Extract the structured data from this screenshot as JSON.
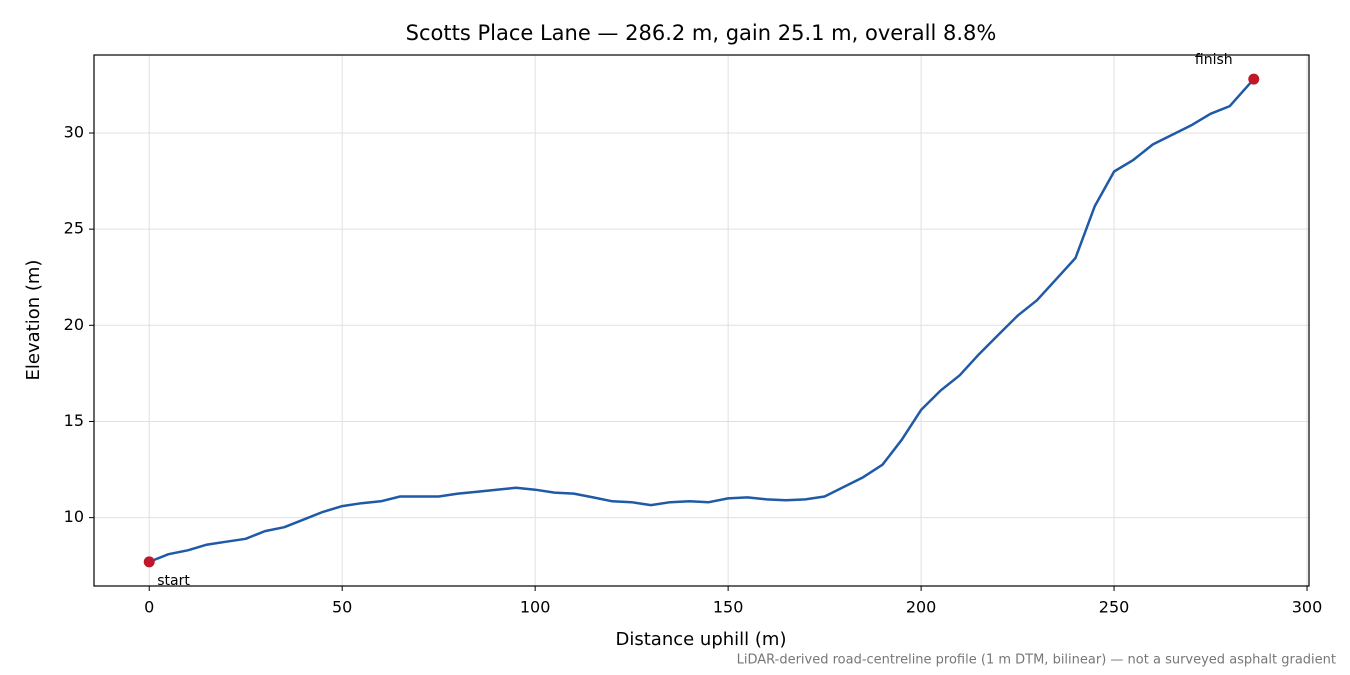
{
  "chart_data": {
    "type": "line",
    "title": "Scotts Place Lane — 286.2 m, gain 25.1 m, overall 8.8%",
    "xlabel": "Distance uphill (m)",
    "ylabel": "Elevation (m)",
    "note": "LiDAR-derived road-centreline profile (1 m DTM, bilinear) — not a surveyed asphalt gradient",
    "annotations": [
      "start",
      "finish"
    ],
    "x": [
      0,
      5,
      10,
      15,
      20,
      25,
      30,
      35,
      40,
      45,
      50,
      55,
      60,
      65,
      70,
      75,
      80,
      85,
      90,
      95,
      100,
      105,
      110,
      115,
      120,
      125,
      130,
      135,
      140,
      145,
      150,
      155,
      160,
      165,
      170,
      175,
      180,
      185,
      190,
      195,
      200,
      205,
      210,
      215,
      220,
      225,
      230,
      235,
      240,
      245,
      250,
      255,
      260,
      265,
      270,
      275,
      280,
      286.2
    ],
    "values": [
      7.7,
      8.1,
      8.3,
      8.6,
      8.75,
      8.9,
      9.3,
      9.5,
      9.9,
      10.3,
      10.6,
      10.75,
      10.85,
      11.1,
      11.1,
      11.1,
      11.25,
      11.35,
      11.45,
      11.55,
      11.45,
      11.3,
      11.25,
      11.05,
      10.85,
      10.8,
      10.65,
      10.8,
      10.85,
      10.8,
      11.0,
      11.05,
      10.95,
      10.9,
      10.95,
      11.1,
      11.6,
      12.1,
      12.75,
      14.05,
      15.6,
      16.6,
      17.4,
      18.5,
      19.5,
      20.5,
      21.3,
      22.4,
      23.5,
      26.2,
      28.0,
      28.6,
      29.4,
      29.9,
      30.4,
      31.0,
      31.4,
      32.8
    ],
    "color": "#1f5aa6",
    "marker_color": "#c0182a",
    "xlim": [
      -14.31,
      300.51
    ],
    "xticks": [
      0,
      50,
      100,
      150,
      200,
      250,
      300
    ],
    "ylim": [
      6.445,
      34.055
    ],
    "yticks": [
      10,
      15,
      20,
      25,
      30
    ],
    "grid": true
  }
}
